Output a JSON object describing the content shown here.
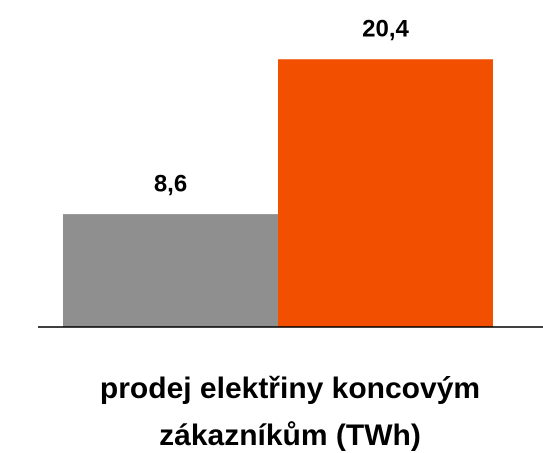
{
  "chart_data": {
    "type": "bar",
    "values": [
      8.6,
      20.4
    ],
    "value_labels": [
      "8,6",
      "20,4"
    ],
    "colors": [
      "#8f8f8f",
      "#f25000"
    ],
    "xlabel": [
      "prodej elektřiny koncovým",
      "zákazníkům (TWh)"
    ],
    "ylim": [
      0,
      24
    ]
  }
}
